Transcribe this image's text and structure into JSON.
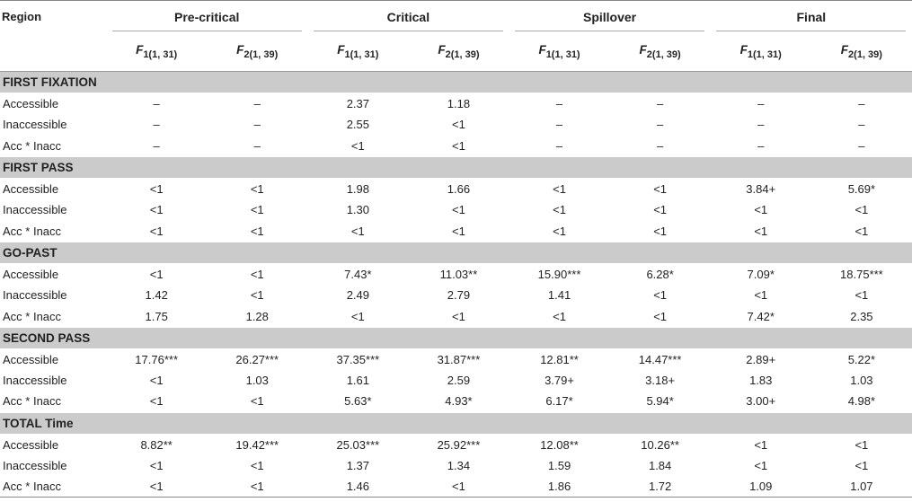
{
  "header": {
    "region": "Region",
    "groups": [
      "Pre-critical",
      "Critical",
      "Spillover",
      "Final"
    ],
    "stats": [
      {
        "f": "F",
        "sub": "1(1, 31)"
      },
      {
        "f": "F",
        "sub": "2(1, 39)"
      }
    ]
  },
  "sections": [
    {
      "title": "FIRST FIXATION",
      "rows": [
        {
          "label": "Accessible",
          "values": [
            "–",
            "–",
            "2.37",
            "1.18",
            "–",
            "–",
            "–",
            "–"
          ]
        },
        {
          "label": "Inaccessible",
          "values": [
            "–",
            "–",
            "2.55",
            "<1",
            "–",
            "–",
            "–",
            "–"
          ]
        },
        {
          "label": "Acc * Inacc",
          "values": [
            "–",
            "–",
            "<1",
            "<1",
            "–",
            "–",
            "–",
            "–"
          ]
        }
      ]
    },
    {
      "title": "FIRST PASS",
      "rows": [
        {
          "label": "Accessible",
          "values": [
            "<1",
            "<1",
            "1.98",
            "1.66",
            "<1",
            "<1",
            "3.84+",
            "5.69*"
          ]
        },
        {
          "label": "Inaccessible",
          "values": [
            "<1",
            "<1",
            "1.30",
            "<1",
            "<1",
            "<1",
            "<1",
            "<1"
          ]
        },
        {
          "label": "Acc * Inacc",
          "values": [
            "<1",
            "<1",
            "<1",
            "<1",
            "<1",
            "<1",
            "<1",
            "<1"
          ]
        }
      ]
    },
    {
      "title": "GO-PAST",
      "rows": [
        {
          "label": "Accessible",
          "values": [
            "<1",
            "<1",
            "7.43*",
            "11.03**",
            "15.90***",
            "6.28*",
            "7.09*",
            "18.75***"
          ]
        },
        {
          "label": "Inaccessible",
          "values": [
            "1.42",
            "<1",
            "2.49",
            "2.79",
            "1.41",
            "<1",
            "<1",
            "<1"
          ]
        },
        {
          "label": "Acc * Inacc",
          "values": [
            "1.75",
            "1.28",
            "<1",
            "<1",
            "<1",
            "<1",
            "7.42*",
            "2.35"
          ]
        }
      ]
    },
    {
      "title": "SECOND PASS",
      "rows": [
        {
          "label": "Accessible",
          "values": [
            "17.76***",
            "26.27***",
            "37.35***",
            "31.87***",
            "12.81**",
            "14.47***",
            "2.89+",
            "5.22*"
          ]
        },
        {
          "label": "Inaccessible",
          "values": [
            "<1",
            "1.03",
            "1.61",
            "2.59",
            "3.79+",
            "3.18+",
            "1.83",
            "1.03"
          ]
        },
        {
          "label": "Acc * Inacc",
          "values": [
            "<1",
            "<1",
            "5.63*",
            "4.93*",
            "6.17*",
            "5.94*",
            "3.00+",
            "4.98*"
          ]
        }
      ]
    },
    {
      "title": "TOTAL Time",
      "rows": [
        {
          "label": "Accessible",
          "values": [
            "8.82**",
            "19.42***",
            "25.03***",
            "25.92***",
            "12.08**",
            "10.26**",
            "<1",
            "<1"
          ]
        },
        {
          "label": "Inaccessible",
          "values": [
            "<1",
            "<1",
            "1.37",
            "1.34",
            "1.59",
            "1.84",
            "<1",
            "<1"
          ]
        },
        {
          "label": "Acc * Inacc",
          "values": [
            "<1",
            "<1",
            "1.46",
            "<1",
            "1.86",
            "1.72",
            "1.09",
            "1.07"
          ]
        }
      ]
    }
  ]
}
